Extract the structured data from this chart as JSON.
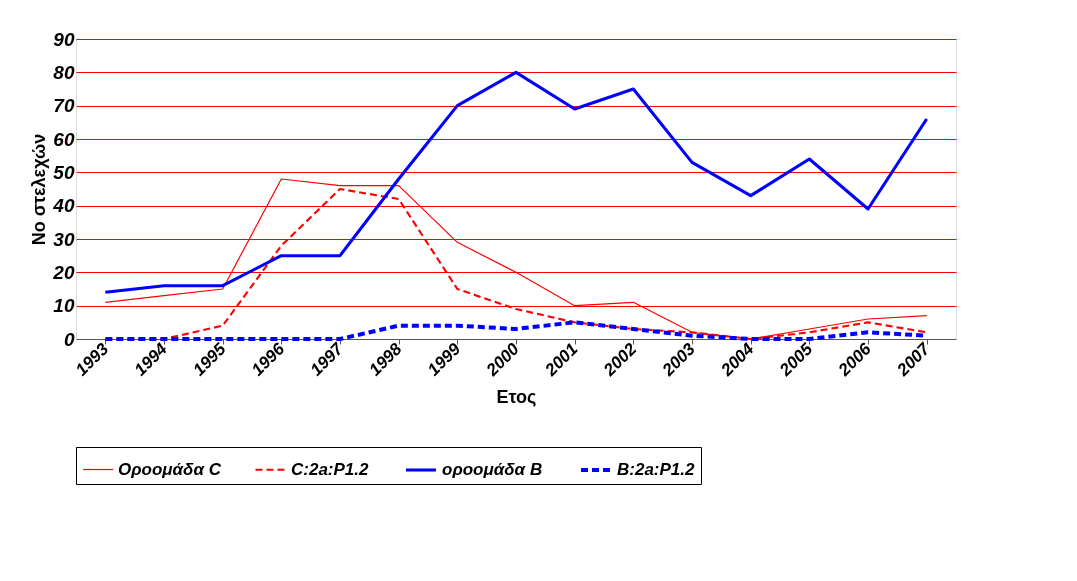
{
  "chart_data": {
    "type": "line",
    "xlabel": "Ετος",
    "ylabel": "Νο στελεχών",
    "categories": [
      "1993",
      "1994",
      "1995",
      "1996",
      "1997",
      "1998",
      "1999",
      "2000",
      "2001",
      "2002",
      "2003",
      "2004",
      "2005",
      "2006",
      "2007"
    ],
    "series": [
      {
        "name": "Οροομάδα C",
        "color": "#ff0000",
        "line_style": "solid",
        "values": [
          11,
          13,
          15,
          48,
          46,
          46,
          29,
          20,
          10,
          11,
          2,
          0,
          3,
          6,
          7
        ]
      },
      {
        "name": "C:2a:P1.2",
        "color": "#ff0000",
        "line_style": "dashed",
        "values": [
          0,
          0,
          4,
          28,
          45,
          42,
          15,
          9,
          5,
          3,
          2,
          0,
          2,
          5,
          2
        ]
      },
      {
        "name": "οροομάδα B",
        "color": "#0000ff",
        "line_style": "solid",
        "values": [
          14,
          16,
          16,
          25,
          25,
          48,
          70,
          80,
          69,
          75,
          53,
          43,
          54,
          39,
          66
        ]
      },
      {
        "name": "B:2a:P1.2",
        "color": "#0000ff",
        "line_style": "dashed",
        "values": [
          0,
          0,
          0,
          0,
          0,
          4,
          4,
          3,
          5,
          3,
          1,
          0,
          0,
          2,
          1
        ]
      }
    ],
    "ylim": [
      0,
      90
    ],
    "yticks": [
      0,
      10,
      20,
      30,
      40,
      50,
      60,
      70,
      80,
      90
    ],
    "grid": "y",
    "legend": "bottom",
    "marker": "none"
  }
}
